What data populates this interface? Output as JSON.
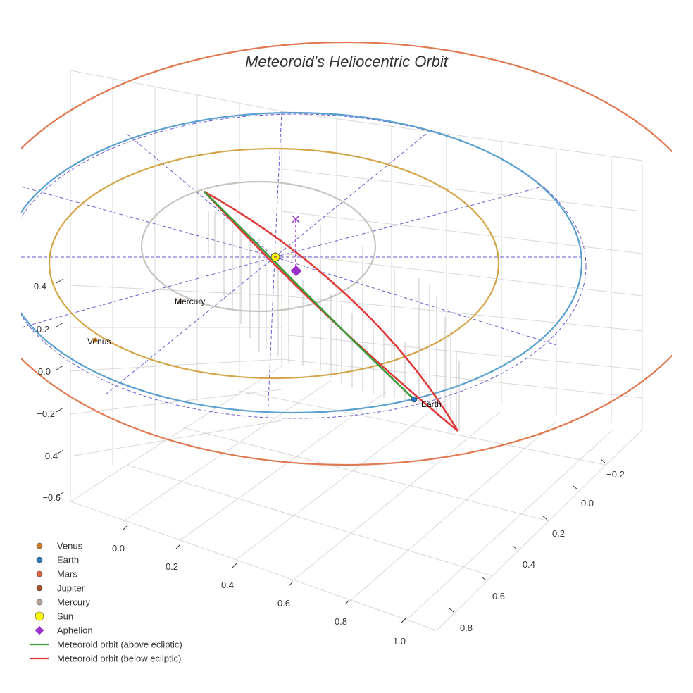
{
  "chart_data": {
    "type": "3d-orbit",
    "title": "Meteoroid's Heliocentric Orbit",
    "axes": {
      "z": {
        "ticks": [
          "0.4",
          "0.2",
          "0.0",
          "−0.2",
          "−0.4",
          "−0.6"
        ]
      },
      "x": {
        "ticks": [
          "0.0",
          "0.2",
          "0.4",
          "0.6",
          "0.8",
          "1.0"
        ]
      },
      "y": {
        "ticks": [
          "−0.2",
          "0.0",
          "0.2",
          "0.4",
          "0.6",
          "0.8"
        ]
      }
    },
    "planets": [
      {
        "name": "Mercury",
        "label": "Mercury",
        "color": "#b0a399",
        "orbit_color": "#c9c3be"
      },
      {
        "name": "Venus",
        "label": "Venus",
        "color": "#c87f2a",
        "orbit_color": "#d4a548"
      },
      {
        "name": "Earth",
        "label": "Earth",
        "color": "#2878c0",
        "orbit_color": "#5aa0d0"
      },
      {
        "name": "Mars",
        "label": "",
        "color": "#d9603b",
        "orbit_color": "#e07850"
      }
    ],
    "meteoroid": {
      "above_ecliptic_color": "#3a9a3a",
      "below_ecliptic_color": "#e03a3a"
    },
    "legend": [
      {
        "label": "Venus",
        "marker": "circle",
        "color": "#c87f2a"
      },
      {
        "label": "Earth",
        "marker": "circle",
        "color": "#2878c0"
      },
      {
        "label": "Mars",
        "marker": "circle",
        "color": "#d9603b"
      },
      {
        "label": "Jupiter",
        "marker": "circle",
        "color": "#a0522d"
      },
      {
        "label": "Mercury",
        "marker": "circle",
        "color": "#b0a399"
      },
      {
        "label": "Sun",
        "marker": "big-circle",
        "color": "#ffff00"
      },
      {
        "label": "Aphelion",
        "marker": "diamond",
        "color": "#9932cc"
      },
      {
        "label": "Meteoroid orbit (above ecliptic)",
        "marker": "line",
        "color": "#3a9a3a"
      },
      {
        "label": "Meteoroid orbit (below ecliptic)",
        "marker": "line",
        "color": "#e03a3a"
      }
    ]
  }
}
